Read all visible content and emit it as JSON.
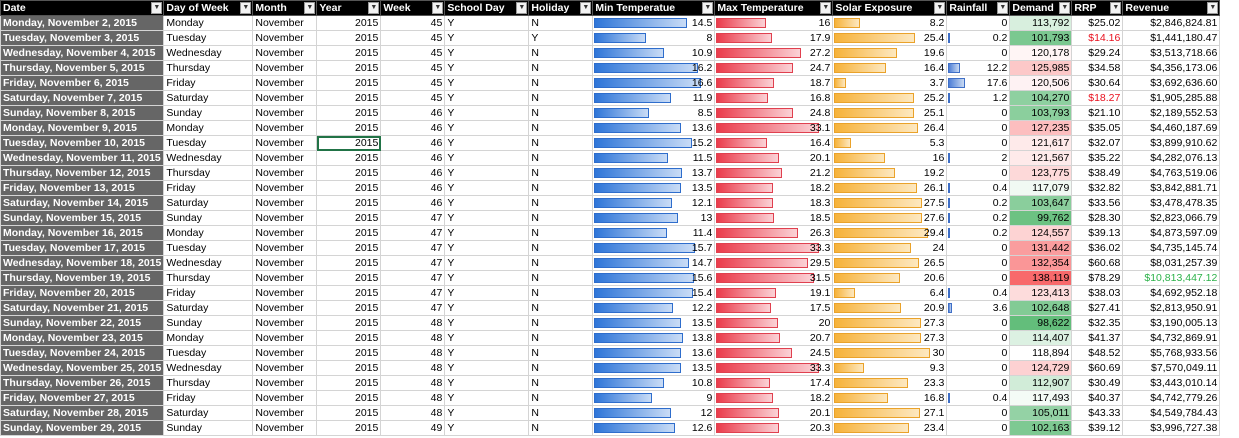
{
  "columns": [
    "Date",
    "Day of Week",
    "Month",
    "Year",
    "Week",
    "School Day",
    "Holiday",
    "Min Temperatue",
    "Max Temperature",
    "Solar Exposure",
    "Rainfall",
    "Demand",
    "RRP",
    "Revenue"
  ],
  "colors": {
    "header_bg": "#000000",
    "date_bg": "#666666",
    "min_bar": "#2e75d8",
    "max_bar": "#ea3b4b",
    "solar_bar": "#f6b23a",
    "rain_bar": "#4d7ed6",
    "red_text": "#e8101e",
    "green_text": "#2db24a",
    "demand_low": "#63be7b",
    "demand_high": "#f8696b"
  },
  "icons": {
    "filter": "dropdown-arrow-icon"
  },
  "rows": [
    {
      "date": "Monday, November 2, 2015",
      "dow": "Monday",
      "month": "November",
      "year": "2015",
      "week": "45",
      "school": "Y",
      "holiday": "N",
      "min": "14.5",
      "max": "16",
      "solar": "8.2",
      "rain": "0",
      "demand": "113,792",
      "rrp": "$25.02",
      "revenue": "$2,846,824.81"
    },
    {
      "date": "Tuesday, November 3, 2015",
      "dow": "Tuesday",
      "month": "November",
      "year": "2015",
      "week": "45",
      "school": "Y",
      "holiday": "Y",
      "min": "8",
      "max": "17.9",
      "solar": "25.4",
      "rain": "0.2",
      "demand": "101,793",
      "rrp": "$14.16",
      "revenue": "$1,441,180.47"
    },
    {
      "date": "Wednesday, November 4, 2015",
      "dow": "Wednesday",
      "month": "November",
      "year": "2015",
      "week": "45",
      "school": "Y",
      "holiday": "N",
      "min": "10.9",
      "max": "27.2",
      "solar": "19.6",
      "rain": "0",
      "demand": "120,178",
      "rrp": "$29.24",
      "revenue": "$3,513,718.66"
    },
    {
      "date": "Thursday, November 5, 2015",
      "dow": "Thursday",
      "month": "November",
      "year": "2015",
      "week": "45",
      "school": "Y",
      "holiday": "N",
      "min": "16.2",
      "max": "24.7",
      "solar": "16.4",
      "rain": "12.2",
      "demand": "125,985",
      "rrp": "$34.58",
      "revenue": "$4,356,173.06"
    },
    {
      "date": "Friday, November 6, 2015",
      "dow": "Friday",
      "month": "November",
      "year": "2015",
      "week": "45",
      "school": "Y",
      "holiday": "N",
      "min": "16.6",
      "max": "18.7",
      "solar": "3.7",
      "rain": "17.6",
      "demand": "120,506",
      "rrp": "$30.64",
      "revenue": "$3,692,636.60"
    },
    {
      "date": "Saturday, November 7, 2015",
      "dow": "Saturday",
      "month": "November",
      "year": "2015",
      "week": "45",
      "school": "Y",
      "holiday": "N",
      "min": "11.9",
      "max": "16.8",
      "solar": "25.2",
      "rain": "1.2",
      "demand": "104,270",
      "rrp": "$18.27",
      "revenue": "$1,905,285.88"
    },
    {
      "date": "Sunday, November 8, 2015",
      "dow": "Sunday",
      "month": "November",
      "year": "2015",
      "week": "46",
      "school": "Y",
      "holiday": "N",
      "min": "8.5",
      "max": "24.8",
      "solar": "25.1",
      "rain": "0",
      "demand": "103,793",
      "rrp": "$21.10",
      "revenue": "$2,189,552.53"
    },
    {
      "date": "Monday, November 9, 2015",
      "dow": "Monday",
      "month": "November",
      "year": "2015",
      "week": "46",
      "school": "Y",
      "holiday": "N",
      "min": "13.6",
      "max": "33.1",
      "solar": "26.4",
      "rain": "0",
      "demand": "127,235",
      "rrp": "$35.05",
      "revenue": "$4,460,187.69"
    },
    {
      "date": "Tuesday, November 10, 2015",
      "dow": "Tuesday",
      "month": "November",
      "year": "2015",
      "week": "46",
      "school": "Y",
      "holiday": "N",
      "min": "15.2",
      "max": "16.4",
      "solar": "5.3",
      "rain": "0",
      "demand": "121,617",
      "rrp": "$32.07",
      "revenue": "$3,899,910.62"
    },
    {
      "date": "Wednesday, November 11, 2015",
      "dow": "Wednesday",
      "month": "November",
      "year": "2015",
      "week": "46",
      "school": "Y",
      "holiday": "N",
      "min": "11.5",
      "max": "20.1",
      "solar": "16",
      "rain": "2",
      "demand": "121,567",
      "rrp": "$35.22",
      "revenue": "$4,282,076.13"
    },
    {
      "date": "Thursday, November 12, 2015",
      "dow": "Thursday",
      "month": "November",
      "year": "2015",
      "week": "46",
      "school": "Y",
      "holiday": "N",
      "min": "13.7",
      "max": "21.2",
      "solar": "19.2",
      "rain": "0",
      "demand": "123,775",
      "rrp": "$38.49",
      "revenue": "$4,763,519.06"
    },
    {
      "date": "Friday, November 13, 2015",
      "dow": "Friday",
      "month": "November",
      "year": "2015",
      "week": "46",
      "school": "Y",
      "holiday": "N",
      "min": "13.5",
      "max": "18.2",
      "solar": "26.1",
      "rain": "0.4",
      "demand": "117,079",
      "rrp": "$32.82",
      "revenue": "$3,842,881.71"
    },
    {
      "date": "Saturday, November 14, 2015",
      "dow": "Saturday",
      "month": "November",
      "year": "2015",
      "week": "46",
      "school": "Y",
      "holiday": "N",
      "min": "12.1",
      "max": "18.3",
      "solar": "27.5",
      "rain": "0.2",
      "demand": "103,647",
      "rrp": "$33.56",
      "revenue": "$3,478,478.35"
    },
    {
      "date": "Sunday, November 15, 2015",
      "dow": "Sunday",
      "month": "November",
      "year": "2015",
      "week": "47",
      "school": "Y",
      "holiday": "N",
      "min": "13",
      "max": "18.5",
      "solar": "27.6",
      "rain": "0.2",
      "demand": "99,762",
      "rrp": "$28.30",
      "revenue": "$2,823,066.79"
    },
    {
      "date": "Monday, November 16, 2015",
      "dow": "Monday",
      "month": "November",
      "year": "2015",
      "week": "47",
      "school": "Y",
      "holiday": "N",
      "min": "11.4",
      "max": "26.3",
      "solar": "29.4",
      "rain": "0.2",
      "demand": "124,557",
      "rrp": "$39.13",
      "revenue": "$4,873,597.09"
    },
    {
      "date": "Tuesday, November 17, 2015",
      "dow": "Tuesday",
      "month": "November",
      "year": "2015",
      "week": "47",
      "school": "Y",
      "holiday": "N",
      "min": "15.7",
      "max": "33.3",
      "solar": "24",
      "rain": "0",
      "demand": "131,442",
      "rrp": "$36.02",
      "revenue": "$4,735,145.74"
    },
    {
      "date": "Wednesday, November 18, 2015",
      "dow": "Wednesday",
      "month": "November",
      "year": "2015",
      "week": "47",
      "school": "Y",
      "holiday": "N",
      "min": "14.7",
      "max": "29.5",
      "solar": "26.5",
      "rain": "0",
      "demand": "132,354",
      "rrp": "$60.68",
      "revenue": "$8,031,257.39"
    },
    {
      "date": "Thursday, November 19, 2015",
      "dow": "Thursday",
      "month": "November",
      "year": "2015",
      "week": "47",
      "school": "Y",
      "holiday": "N",
      "min": "15.6",
      "max": "31.5",
      "solar": "20.6",
      "rain": "0",
      "demand": "138,119",
      "rrp": "$78.29",
      "revenue": "$10,813,447.12"
    },
    {
      "date": "Friday, November 20, 2015",
      "dow": "Friday",
      "month": "November",
      "year": "2015",
      "week": "47",
      "school": "Y",
      "holiday": "N",
      "min": "15.4",
      "max": "19.1",
      "solar": "6.4",
      "rain": "0.4",
      "demand": "123,413",
      "rrp": "$38.03",
      "revenue": "$4,692,952.18"
    },
    {
      "date": "Saturday, November 21, 2015",
      "dow": "Saturday",
      "month": "November",
      "year": "2015",
      "week": "47",
      "school": "Y",
      "holiday": "N",
      "min": "12.2",
      "max": "17.5",
      "solar": "20.9",
      "rain": "3.6",
      "demand": "102,648",
      "rrp": "$27.41",
      "revenue": "$2,813,950.91"
    },
    {
      "date": "Sunday, November 22, 2015",
      "dow": "Sunday",
      "month": "November",
      "year": "2015",
      "week": "48",
      "school": "Y",
      "holiday": "N",
      "min": "13.5",
      "max": "20",
      "solar": "27.3",
      "rain": "0",
      "demand": "98,622",
      "rrp": "$32.35",
      "revenue": "$3,190,005.13"
    },
    {
      "date": "Monday, November 23, 2015",
      "dow": "Monday",
      "month": "November",
      "year": "2015",
      "week": "48",
      "school": "Y",
      "holiday": "N",
      "min": "13.8",
      "max": "20.7",
      "solar": "27.3",
      "rain": "0",
      "demand": "114,407",
      "rrp": "$41.37",
      "revenue": "$4,732,869.91"
    },
    {
      "date": "Tuesday, November 24, 2015",
      "dow": "Tuesday",
      "month": "November",
      "year": "2015",
      "week": "48",
      "school": "Y",
      "holiday": "N",
      "min": "13.6",
      "max": "24.5",
      "solar": "30",
      "rain": "0",
      "demand": "118,894",
      "rrp": "$48.52",
      "revenue": "$5,768,933.56"
    },
    {
      "date": "Wednesday, November 25, 2015",
      "dow": "Wednesday",
      "month": "November",
      "year": "2015",
      "week": "48",
      "school": "Y",
      "holiday": "N",
      "min": "13.5",
      "max": "33.3",
      "solar": "9.3",
      "rain": "0",
      "demand": "124,729",
      "rrp": "$60.69",
      "revenue": "$7,570,049.11"
    },
    {
      "date": "Thursday, November 26, 2015",
      "dow": "Thursday",
      "month": "November",
      "year": "2015",
      "week": "48",
      "school": "Y",
      "holiday": "N",
      "min": "10.8",
      "max": "17.4",
      "solar": "23.3",
      "rain": "0",
      "demand": "112,907",
      "rrp": "$30.49",
      "revenue": "$3,443,010.14"
    },
    {
      "date": "Friday, November 27, 2015",
      "dow": "Friday",
      "month": "November",
      "year": "2015",
      "week": "48",
      "school": "Y",
      "holiday": "N",
      "min": "9",
      "max": "18.2",
      "solar": "16.8",
      "rain": "0.4",
      "demand": "117,493",
      "rrp": "$40.37",
      "revenue": "$4,742,779.26"
    },
    {
      "date": "Saturday, November 28, 2015",
      "dow": "Saturday",
      "month": "November",
      "year": "2015",
      "week": "48",
      "school": "Y",
      "holiday": "N",
      "min": "12",
      "max": "20.1",
      "solar": "27.1",
      "rain": "0",
      "demand": "105,011",
      "rrp": "$43.33",
      "revenue": "$4,549,784.43"
    },
    {
      "date": "Sunday, November 29, 2015",
      "dow": "Sunday",
      "month": "November",
      "year": "2015",
      "week": "49",
      "school": "Y",
      "holiday": "N",
      "min": "12.6",
      "max": "20.3",
      "solar": "23.4",
      "rain": "0",
      "demand": "102,163",
      "rrp": "$39.12",
      "revenue": "$3,996,727.38"
    }
  ]
}
